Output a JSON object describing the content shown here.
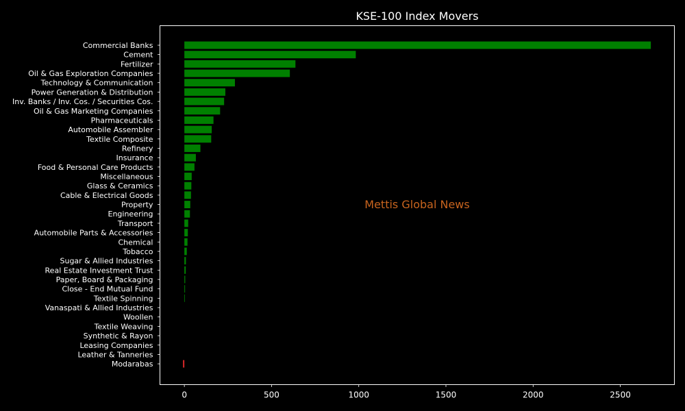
{
  "chart_data": {
    "type": "bar",
    "orientation": "horizontal",
    "title": "KSE-100 Index Movers",
    "watermark": "Mettis Global News",
    "xlabel": "",
    "ylabel": "",
    "xlim": [
      -140,
      2810
    ],
    "xticks": [
      0,
      500,
      1000,
      1500,
      2000,
      2500
    ],
    "grid": false,
    "background_color": "#000000",
    "text_color": "#ffffff",
    "positive_color": "#008000",
    "negative_color": "#d62728",
    "watermark_color": "#c8641e",
    "categories": [
      "Commercial Banks",
      "Cement",
      "Fertilizer",
      "Oil & Gas Exploration Companies",
      "Technology & Communication",
      "Power Generation & Distribution",
      "Inv. Banks / Inv. Cos. / Securities Cos.",
      "Oil & Gas Marketing Companies",
      "Pharmaceuticals",
      "Automobile Assembler",
      "Textile Composite",
      "Refinery",
      "Insurance",
      "Food & Personal Care Products",
      "Miscellaneous",
      "Glass & Ceramics",
      "Cable & Electrical Goods",
      "Property",
      "Engineering",
      "Transport",
      "Automobile Parts & Accessories",
      "Chemical",
      "Tobacco",
      "Sugar & Allied Industries",
      "Real Estate Investment Trust",
      "Paper, Board & Packaging",
      "Close - End Mutual Fund",
      "Textile Spinning",
      "Vanaspati & Allied Industries",
      "Woollen",
      "Textile Weaving",
      "Synthetic & Rayon",
      "Leasing Companies",
      "Leather & Tanneries",
      "Modarabas"
    ],
    "values": [
      2675,
      983,
      637,
      605,
      290,
      235,
      228,
      205,
      167,
      157,
      154,
      92,
      66,
      58,
      42,
      40,
      38,
      34,
      32,
      22,
      20,
      18,
      14,
      9,
      8,
      5,
      4,
      3,
      0,
      0,
      0,
      0,
      0,
      0,
      -8
    ]
  }
}
